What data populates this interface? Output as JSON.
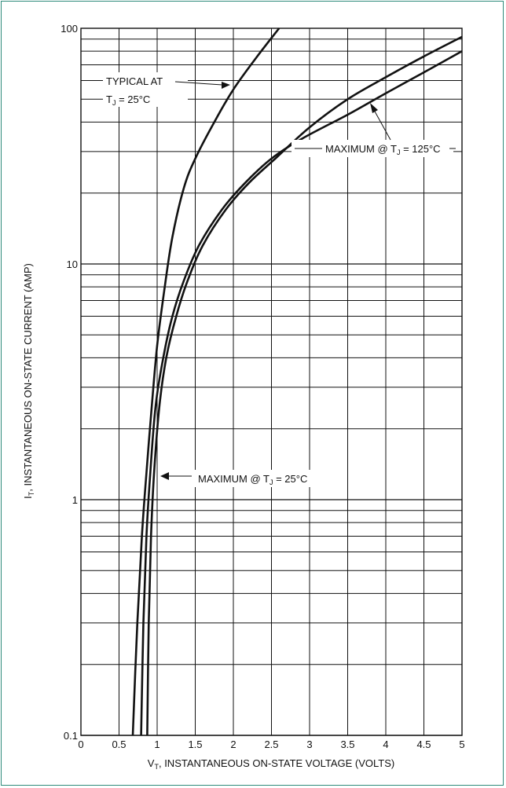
{
  "chart_data": {
    "type": "line",
    "xlabel_main": "V",
    "xlabel_sub": "T",
    "xlabel_rest": ", INSTANTANEOUS ON-STATE VOLTAGE (VOLTS)",
    "ylabel_main": "I",
    "ylabel_sub": "T",
    "ylabel_rest": ", INSTANTANEOUS ON-STATE CURRENT (AMP)",
    "xlim": [
      0,
      5
    ],
    "ylim": [
      0.1,
      100
    ],
    "y_scale": "log",
    "grid": true,
    "x_ticks": [
      "0",
      "0.5",
      "1",
      "1.5",
      "2",
      "2.5",
      "3",
      "3.5",
      "4",
      "4.5",
      "5"
    ],
    "y_ticks": [
      "0.1",
      "1",
      "10",
      "100"
    ],
    "series": [
      {
        "name": "TYPICAL AT TJ = 25°C",
        "points": [
          [
            0.68,
            0.1
          ],
          [
            0.74,
            0.3
          ],
          [
            0.8,
            0.7
          ],
          [
            0.86,
            1.3
          ],
          [
            0.93,
            2.5
          ],
          [
            1.0,
            4.5
          ],
          [
            1.1,
            8
          ],
          [
            1.2,
            13
          ],
          [
            1.35,
            21
          ],
          [
            1.5,
            28
          ],
          [
            1.75,
            40
          ],
          [
            2.0,
            55
          ],
          [
            2.3,
            75
          ],
          [
            2.6,
            100
          ]
        ]
      },
      {
        "name": "MAXIMUM @ TJ = 25°C",
        "points": [
          [
            0.87,
            0.1
          ],
          [
            0.89,
            0.3
          ],
          [
            0.92,
            0.7
          ],
          [
            0.96,
            1.3
          ],
          [
            1.03,
            2.5
          ],
          [
            1.12,
            4
          ],
          [
            1.25,
            6
          ],
          [
            1.4,
            8.5
          ],
          [
            1.6,
            12
          ],
          [
            1.9,
            17
          ],
          [
            2.2,
            22
          ],
          [
            2.55,
            28
          ],
          [
            3.0,
            38
          ],
          [
            3.5,
            50
          ],
          [
            4.0,
            62
          ],
          [
            4.5,
            76
          ],
          [
            5.0,
            92
          ]
        ]
      },
      {
        "name": "MAXIMUM @ TJ = 125°C",
        "points": [
          [
            0.79,
            0.1
          ],
          [
            0.82,
            0.3
          ],
          [
            0.86,
            0.7
          ],
          [
            0.91,
            1.3
          ],
          [
            0.98,
            2.5
          ],
          [
            1.08,
            4
          ],
          [
            1.2,
            6
          ],
          [
            1.35,
            8.5
          ],
          [
            1.55,
            12
          ],
          [
            1.85,
            17
          ],
          [
            2.15,
            22
          ],
          [
            2.5,
            28
          ],
          [
            2.9,
            34
          ],
          [
            3.5,
            43
          ],
          [
            4.0,
            53
          ],
          [
            4.5,
            65
          ],
          [
            5.0,
            80
          ]
        ]
      }
    ],
    "annotations": {
      "typical_line1": "TYPICAL AT",
      "typical_line2_main": "T",
      "typical_line2_sub": "J",
      "typical_line2_rest": " = 25°C",
      "max125": "MAXIMUM @ T",
      "max125_sub": "J",
      "max125_rest": " = 125°C",
      "max25": "MAXIMUM @ T",
      "max25_sub": "J",
      "max25_rest": " = 25°C"
    }
  }
}
